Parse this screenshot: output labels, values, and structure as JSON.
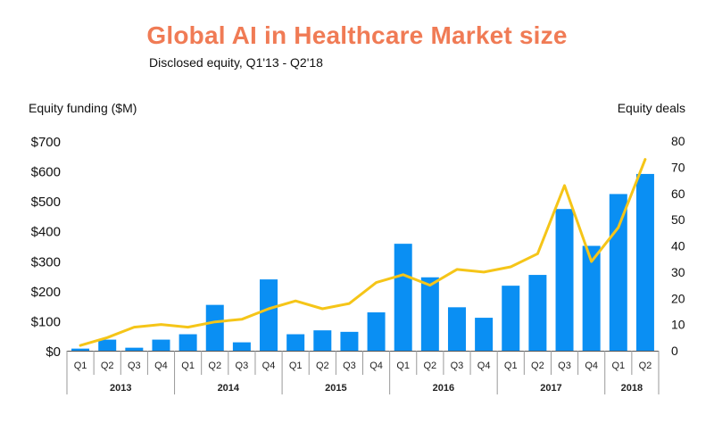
{
  "chart_data": {
    "type": "bar+line",
    "title": "Global AI in Healthcare Market size",
    "subtitle": "Disclosed equity, Q1'13 - Q2'18",
    "ylabel_left": "Equity funding ($M)",
    "ylabel_right": "Equity deals",
    "categories": [
      "Q1",
      "Q2",
      "Q3",
      "Q4",
      "Q1",
      "Q2",
      "Q3",
      "Q4",
      "Q1",
      "Q2",
      "Q3",
      "Q4",
      "Q1",
      "Q2",
      "Q3",
      "Q4",
      "Q1",
      "Q2",
      "Q3",
      "Q4",
      "Q1",
      "Q2"
    ],
    "years": [
      {
        "label": "2013",
        "count": 4
      },
      {
        "label": "2014",
        "count": 4
      },
      {
        "label": "2015",
        "count": 4
      },
      {
        "label": "2016",
        "count": 4
      },
      {
        "label": "2017",
        "count": 4
      },
      {
        "label": "2018",
        "count": 2
      }
    ],
    "series": [
      {
        "type": "bar",
        "axis": "left",
        "color": "#0a8ff3",
        "values": [
          7,
          37,
          10,
          37,
          55,
          153,
          28,
          238,
          55,
          68,
          63,
          128,
          357,
          245,
          145,
          110,
          217,
          253,
          473,
          350,
          523,
          590
        ]
      },
      {
        "type": "line",
        "axis": "right",
        "color": "#f5c518",
        "values": [
          2,
          5,
          9,
          10,
          9,
          11,
          12,
          16,
          19,
          16,
          18,
          26,
          29,
          25,
          31,
          30,
          32,
          37,
          63,
          34,
          47,
          73
        ]
      }
    ],
    "ylim_left": [
      0,
      700
    ],
    "yticks_left": [
      "$0",
      "$100",
      "$200",
      "$300",
      "$400",
      "$500",
      "$600",
      "$700"
    ],
    "ylim_right": [
      0,
      80
    ],
    "yticks_right": [
      "0",
      "10",
      "20",
      "30",
      "40",
      "50",
      "60",
      "70",
      "80"
    ],
    "grid": false
  }
}
